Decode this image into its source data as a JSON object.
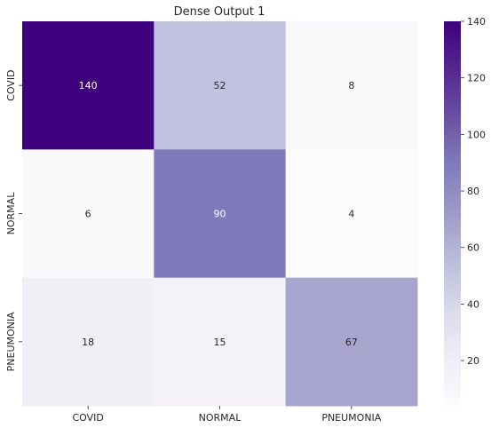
{
  "chart_data": {
    "type": "heatmap",
    "title": "Dense Output 1",
    "xlabel": "",
    "ylabel": "",
    "x_categories": [
      "COVID",
      "NORMAL",
      "PNEUMONIA"
    ],
    "y_categories": [
      "COVID",
      "NORMAL",
      "PNEUMONIA"
    ],
    "values": [
      [
        140,
        52,
        8
      ],
      [
        6,
        90,
        4
      ],
      [
        18,
        15,
        67
      ]
    ],
    "colorscale": "Purples",
    "colorbar": {
      "min": 4,
      "max": 140,
      "ticks": [
        20,
        40,
        60,
        80,
        100,
        120,
        140
      ]
    }
  }
}
